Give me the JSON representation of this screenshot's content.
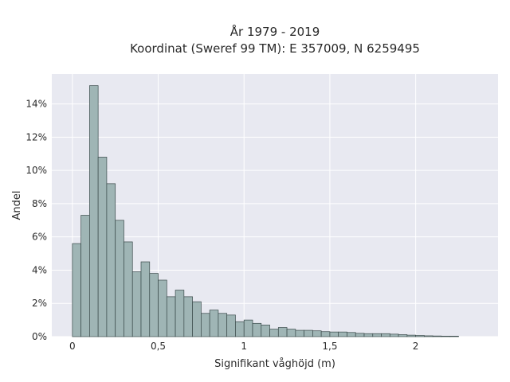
{
  "chart_data": {
    "type": "bar",
    "title_line1": "År 1979 - 2019",
    "title_line2": "Koordinat (Sweref 99 TM): E 357009, N 6259495",
    "xlabel": "Signifikant våghöjd (m)",
    "ylabel": "Andel",
    "x_ticks": [
      {
        "value": 0,
        "label": "0"
      },
      {
        "value": 0.5,
        "label": "0,5"
      },
      {
        "value": 1,
        "label": "1"
      },
      {
        "value": 1.5,
        "label": "1,5"
      },
      {
        "value": 2,
        "label": "2"
      }
    ],
    "y_ticks": [
      {
        "value": 0,
        "label": "0%"
      },
      {
        "value": 2,
        "label": "2%"
      },
      {
        "value": 4,
        "label": "4%"
      },
      {
        "value": 6,
        "label": "6%"
      },
      {
        "value": 8,
        "label": "8%"
      },
      {
        "value": 10,
        "label": "10%"
      },
      {
        "value": 12,
        "label": "12%"
      },
      {
        "value": 14,
        "label": "14%"
      }
    ],
    "xlim": [
      -0.12,
      2.48
    ],
    "ylim": [
      0,
      15.8
    ],
    "grid": true,
    "bin_width": 0.05,
    "bin_start": 0,
    "values": [
      5.6,
      7.3,
      15.1,
      10.8,
      9.2,
      7.0,
      5.7,
      3.9,
      4.5,
      3.8,
      3.4,
      2.4,
      2.8,
      2.4,
      2.1,
      1.4,
      1.6,
      1.4,
      1.3,
      0.9,
      1.0,
      0.8,
      0.7,
      0.45,
      0.55,
      0.45,
      0.38,
      0.38,
      0.35,
      0.3,
      0.28,
      0.28,
      0.25,
      0.2,
      0.18,
      0.18,
      0.18,
      0.15,
      0.12,
      0.09,
      0.07,
      0.05,
      0.04,
      0.03,
      0.03
    ],
    "colors": {
      "bar_fill": "#9fb5b5",
      "bar_stroke": "#3a4a4a",
      "plot_bg": "#e8e9f1",
      "grid": "#ffffff"
    }
  }
}
